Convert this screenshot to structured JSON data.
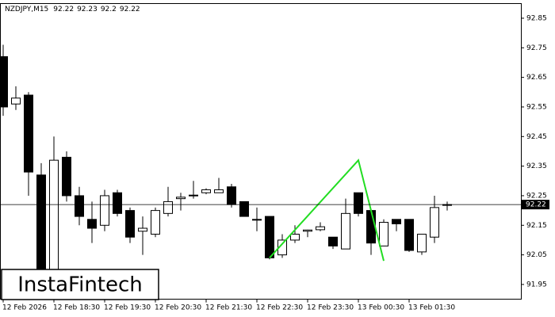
{
  "chart_data": {
    "type": "candlestick",
    "symbol": "NZDJPY,M15",
    "categories": [
      "12 Feb 2026",
      null,
      null,
      null,
      "12 Feb 18:30",
      null,
      null,
      null,
      "12 Feb 19:30",
      null,
      null,
      null,
      "12 Feb 20:30",
      null,
      null,
      null,
      "12 Feb 21:30",
      null,
      null,
      null,
      "12 Feb 22:30",
      null,
      null,
      null,
      "12 Feb 23:30",
      null,
      null,
      null,
      "13 Feb 00:30",
      null,
      null,
      null,
      "13 Feb 01:30",
      null,
      null,
      null
    ],
    "open": [
      92.72,
      92.56,
      92.59,
      92.32,
      91.94,
      92.38,
      92.25,
      92.17,
      92.15,
      92.26,
      92.2,
      92.13,
      92.12,
      92.19,
      92.24,
      92.25,
      92.26,
      92.26,
      92.28,
      92.23,
      92.17,
      92.18,
      92.05,
      92.1,
      92.13,
      92.135,
      92.11,
      92.07,
      92.26,
      92.2,
      92.08,
      92.17,
      92.17,
      92.06,
      92.11,
      92.22
    ],
    "high": [
      92.76,
      92.62,
      92.6,
      92.36,
      92.45,
      92.4,
      92.28,
      92.23,
      92.27,
      92.27,
      92.21,
      92.18,
      92.21,
      92.28,
      92.26,
      92.3,
      92.275,
      92.31,
      92.29,
      92.23,
      92.21,
      92.18,
      92.12,
      92.15,
      92.135,
      92.16,
      92.11,
      92.24,
      92.26,
      92.2,
      92.17,
      92.17,
      92.17,
      92.12,
      92.25,
      92.23
    ],
    "low": [
      92.52,
      92.54,
      92.25,
      91.91,
      91.92,
      92.23,
      92.15,
      92.09,
      92.13,
      92.18,
      92.09,
      92.05,
      92.11,
      92.18,
      92.2,
      92.24,
      92.255,
      92.26,
      92.21,
      92.18,
      92.13,
      92.035,
      92.04,
      92.09,
      92.11,
      92.13,
      92.07,
      92.07,
      92.18,
      92.05,
      92.08,
      92.13,
      92.06,
      92.05,
      92.09,
      92.2
    ],
    "close": [
      92.55,
      92.58,
      92.33,
      91.93,
      92.37,
      92.25,
      92.18,
      92.14,
      92.25,
      92.19,
      92.11,
      92.14,
      92.2,
      92.23,
      92.245,
      92.252,
      92.27,
      92.27,
      92.22,
      92.18,
      92.168,
      92.04,
      92.1,
      92.12,
      92.134,
      92.145,
      92.08,
      92.19,
      92.19,
      92.09,
      92.16,
      92.155,
      92.065,
      92.12,
      92.21,
      92.22
    ],
    "up_color": "#ffffff",
    "down_color": "#000000",
    "ylim": [
      91.9,
      92.9
    ],
    "yticks": [
      91.95,
      92.05,
      92.15,
      92.25,
      92.35,
      92.45,
      92.55,
      92.65,
      92.75,
      92.85
    ],
    "pattern": {
      "color": "#22dd22",
      "x": [
        21,
        28,
        30
      ],
      "values": [
        92.04,
        92.37,
        92.03
      ]
    },
    "watermark": "InstaFintech"
  }
}
